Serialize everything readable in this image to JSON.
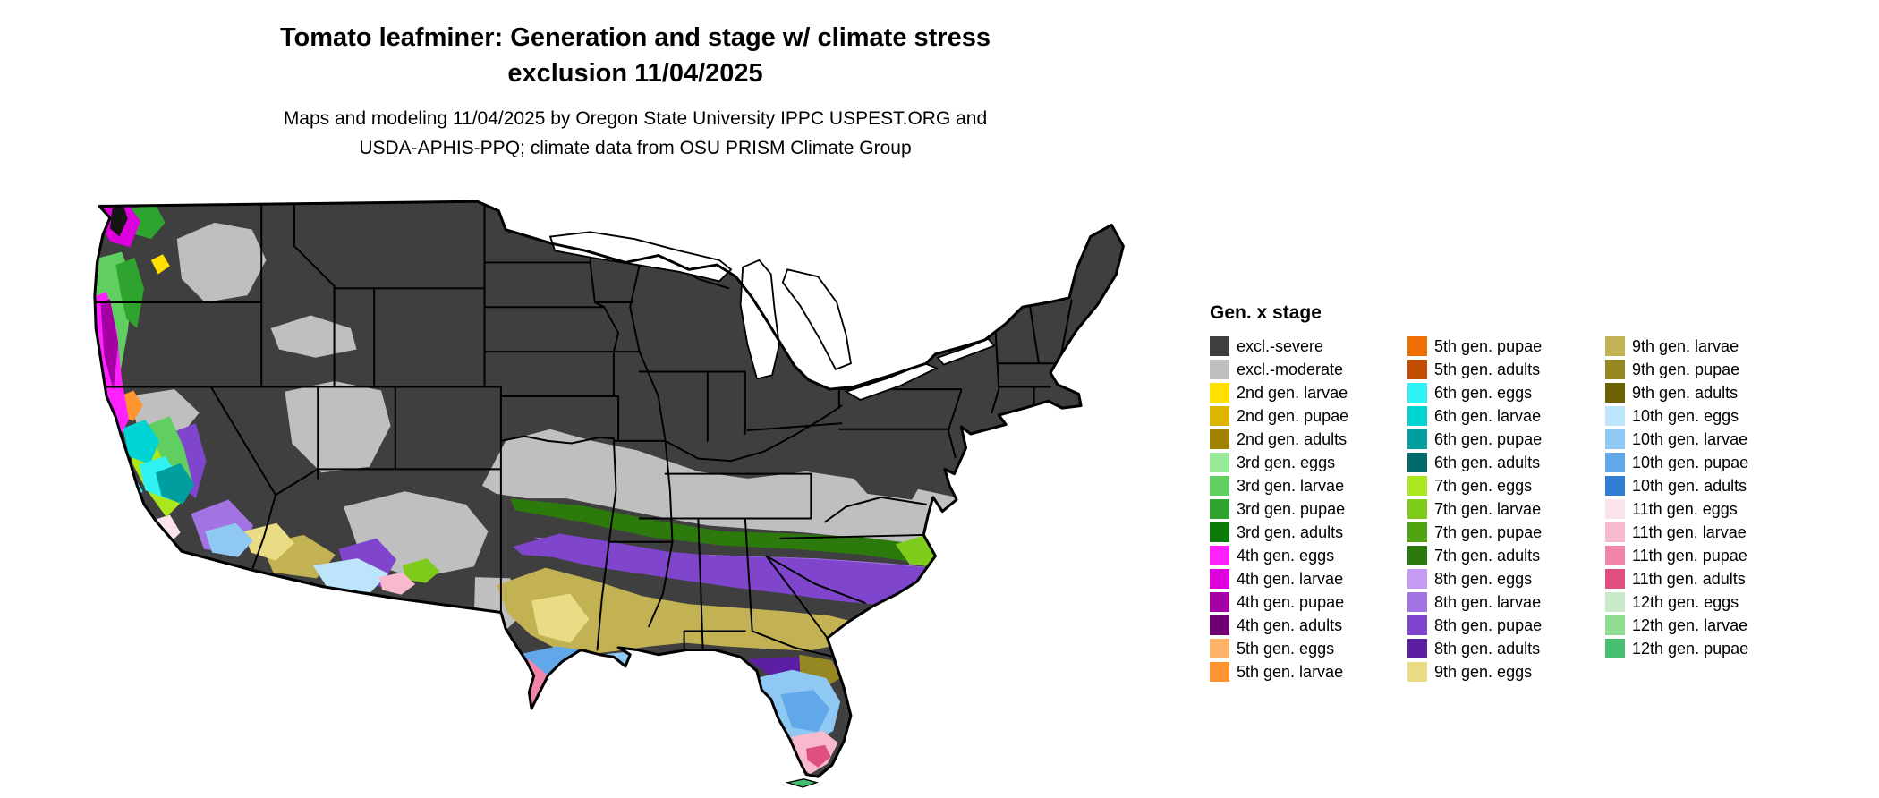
{
  "title": {
    "line1": "Tomato leafminer: Generation and stage w/ climate stress",
    "line2": "exclusion 11/04/2025"
  },
  "subtitle": {
    "line1": "Maps and modeling 11/04/2025 by Oregon State University IPPC USPEST.ORG and",
    "line2": "USDA-APHIS-PPQ; climate data from OSU PRISM Climate Group"
  },
  "legend": {
    "title": "Gen. x stage",
    "columns": [
      [
        {
          "label": "excl.-severe",
          "color_key": "excl_severe"
        },
        {
          "label": "excl.-moderate",
          "color_key": "excl_moderate"
        },
        {
          "label": "2nd gen. larvae",
          "color_key": "g2_larvae"
        },
        {
          "label": "2nd gen. pupae",
          "color_key": "g2_pupae"
        },
        {
          "label": "2nd gen. adults",
          "color_key": "g2_adults"
        },
        {
          "label": "3rd gen. eggs",
          "color_key": "g3_eggs"
        },
        {
          "label": "3rd gen. larvae",
          "color_key": "g3_larvae"
        },
        {
          "label": "3rd gen. pupae",
          "color_key": "g3_pupae"
        },
        {
          "label": "3rd gen. adults",
          "color_key": "g3_adults"
        },
        {
          "label": "4th gen. eggs",
          "color_key": "g4_eggs"
        },
        {
          "label": "4th gen. larvae",
          "color_key": "g4_larvae"
        },
        {
          "label": "4th gen. pupae",
          "color_key": "g4_pupae"
        },
        {
          "label": "4th gen. adults",
          "color_key": "g4_adults"
        },
        {
          "label": "5th gen. eggs",
          "color_key": "g5_eggs"
        },
        {
          "label": "5th gen. larvae",
          "color_key": "g5_larvae"
        }
      ],
      [
        {
          "label": "5th gen. pupae",
          "color_key": "g5_pupae"
        },
        {
          "label": "5th gen. adults",
          "color_key": "g5_adults"
        },
        {
          "label": "6th gen. eggs",
          "color_key": "g6_eggs"
        },
        {
          "label": "6th gen. larvae",
          "color_key": "g6_larvae"
        },
        {
          "label": "6th gen. pupae",
          "color_key": "g6_pupae"
        },
        {
          "label": "6th gen. adults",
          "color_key": "g6_adults"
        },
        {
          "label": "7th gen. eggs",
          "color_key": "g7_eggs"
        },
        {
          "label": "7th gen. larvae",
          "color_key": "g7_larvae"
        },
        {
          "label": "7th gen. pupae",
          "color_key": "g7_pupae"
        },
        {
          "label": "7th gen. adults",
          "color_key": "g7_adults"
        },
        {
          "label": "8th gen. eggs",
          "color_key": "g8_eggs"
        },
        {
          "label": "8th gen. larvae",
          "color_key": "g8_larvae"
        },
        {
          "label": "8th gen. pupae",
          "color_key": "g8_pupae"
        },
        {
          "label": "8th gen. adults",
          "color_key": "g8_adults"
        },
        {
          "label": "9th gen. eggs",
          "color_key": "g9_eggs"
        }
      ],
      [
        {
          "label": "9th gen. larvae",
          "color_key": "g9_larvae"
        },
        {
          "label": "9th gen. pupae",
          "color_key": "g9_pupae"
        },
        {
          "label": "9th gen. adults",
          "color_key": "g9_adults"
        },
        {
          "label": "10th gen. eggs",
          "color_key": "g10_eggs"
        },
        {
          "label": "10th gen. larvae",
          "color_key": "g10_larvae"
        },
        {
          "label": "10th gen. pupae",
          "color_key": "g10_pupae"
        },
        {
          "label": "10th gen. adults",
          "color_key": "g10_adults"
        },
        {
          "label": "11th gen. eggs",
          "color_key": "g11_eggs"
        },
        {
          "label": "11th gen. larvae",
          "color_key": "g11_larvae"
        },
        {
          "label": "11th gen. pupae",
          "color_key": "g11_pupae"
        },
        {
          "label": "11th gen. adults",
          "color_key": "g11_adults"
        },
        {
          "label": "12th gen. eggs",
          "color_key": "g12_eggs"
        },
        {
          "label": "12th gen. larvae",
          "color_key": "g12_larvae"
        },
        {
          "label": "12th gen. pupae",
          "color_key": "g12_pupae"
        }
      ]
    ]
  },
  "palette": {
    "excl_severe": "#3F3F3F",
    "excl_moderate": "#BFBFBF",
    "g2_larvae": "#FFE000",
    "g2_pupae": "#DDB500",
    "g2_adults": "#A08200",
    "g3_eggs": "#97E897",
    "g3_larvae": "#60CE60",
    "g3_pupae": "#2EA42E",
    "g3_adults": "#0B7A0B",
    "g4_eggs": "#FF22FF",
    "g4_larvae": "#DD00DD",
    "g4_pupae": "#A400A4",
    "g4_adults": "#6F006F",
    "g5_eggs": "#FFB469",
    "g5_larvae": "#FF9430",
    "g5_pupae": "#EE7000",
    "g5_adults": "#C14E00",
    "g6_eggs": "#2FF3F3",
    "g6_larvae": "#00D3D3",
    "g6_pupae": "#009E9E",
    "g6_adults": "#006A6A",
    "g7_eggs": "#ABE71E",
    "g7_larvae": "#7ECB1B",
    "g7_pupae": "#50A313",
    "g7_adults": "#2B7A0B",
    "g8_eggs": "#C39BF2",
    "g8_larvae": "#A273E3",
    "g8_pupae": "#7F46CD",
    "g8_adults": "#5C1FA3",
    "g9_eggs": "#EADC85",
    "g9_larvae": "#C3B254",
    "g9_pupae": "#958822",
    "g9_adults": "#6B6100",
    "g10_eggs": "#BCE4FA",
    "g10_larvae": "#8FC8F2",
    "g10_pupae": "#60A8EA",
    "g10_adults": "#2F7ED2",
    "g11_eggs": "#FCE4EC",
    "g11_larvae": "#F8B9CD",
    "g11_pupae": "#F184A9",
    "g11_adults": "#E0507E",
    "g12_eggs": "#C8EAC8",
    "g12_larvae": "#8FDB8F",
    "g12_pupae": "#46BE6E",
    "water": "#FFFFFF",
    "puget": "#151515"
  }
}
